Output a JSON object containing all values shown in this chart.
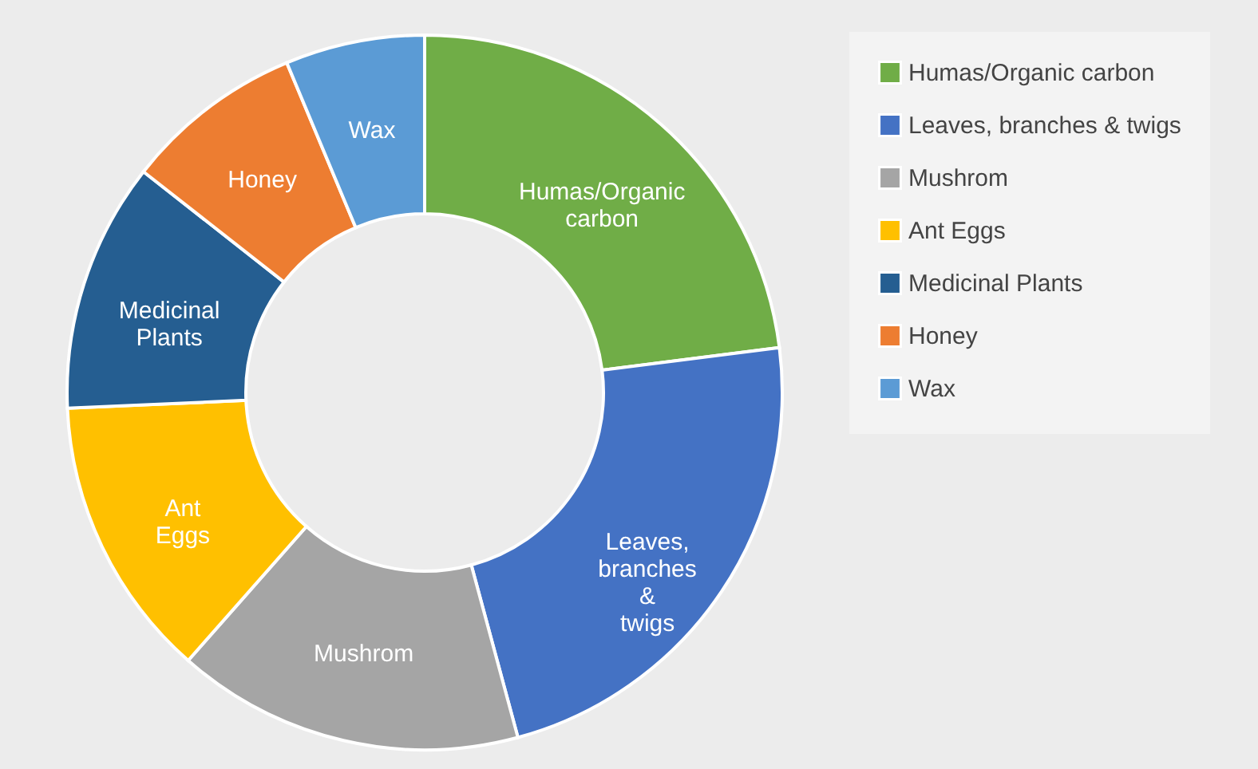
{
  "chart_data": {
    "type": "donut",
    "categories": [
      "Humas/Organic carbon",
      "Leaves, branches & twigs",
      "Mushrom",
      "Ant Eggs",
      "Medicinal Plants",
      "Honey",
      "Wax"
    ],
    "values": [
      23,
      22.8,
      15.7,
      12.8,
      11.3,
      8.1,
      6.3
    ],
    "colors": [
      "#70ad47",
      "#4472c4",
      "#a5a5a5",
      "#ffc000",
      "#255e91",
      "#ed7d31",
      "#5b9bd5"
    ],
    "legend": "right"
  }
}
